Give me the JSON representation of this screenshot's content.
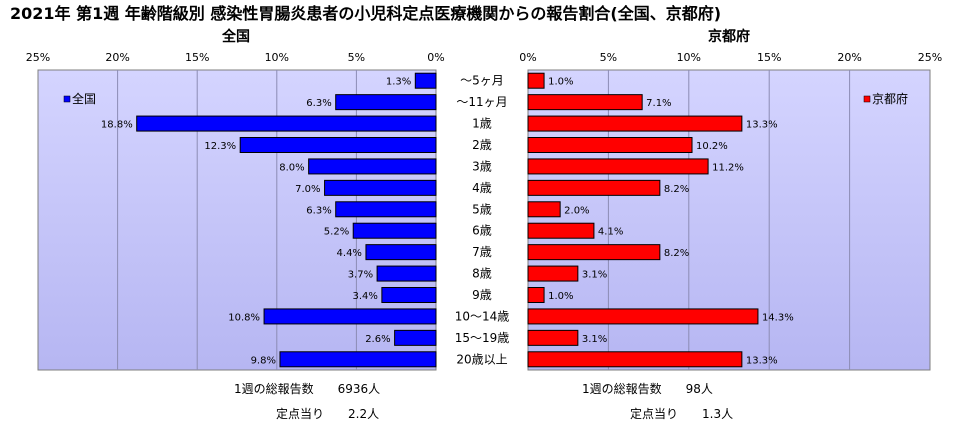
{
  "chart_data": {
    "type": "bar",
    "title": "2021年 第1週 年齢階級別 感染性胃腸炎患者の小児科定点医療機関からの報告割合(全国、京都府)",
    "categories": [
      "～5ヶ月",
      "～11ヶ月",
      "1歳",
      "2歳",
      "3歳",
      "4歳",
      "5歳",
      "6歳",
      "7歳",
      "8歳",
      "9歳",
      "10～14歳",
      "15～19歳",
      "20歳以上"
    ],
    "xlim": [
      0,
      25
    ],
    "x_ticks": [
      "0%",
      "5%",
      "10%",
      "15%",
      "20%",
      "25%"
    ],
    "grid": true,
    "series": [
      {
        "name": "全国",
        "panel_title": "全国",
        "color": "#0000ff",
        "legend_position": "top-left",
        "values": [
          1.3,
          6.3,
          18.8,
          12.3,
          8.0,
          7.0,
          6.3,
          5.2,
          4.4,
          3.7,
          3.4,
          10.8,
          2.6,
          9.8
        ],
        "value_labels": [
          "1.3%",
          "6.3%",
          "18.8%",
          "12.3%",
          "8.0%",
          "7.0%",
          "6.3%",
          "5.2%",
          "4.4%",
          "3.7%",
          "3.4%",
          "10.8%",
          "2.6%",
          "9.8%"
        ]
      },
      {
        "name": "京都府",
        "panel_title": "京都府",
        "color": "#ff0000",
        "legend_position": "top-right",
        "values": [
          1.0,
          7.1,
          13.3,
          10.2,
          11.2,
          8.2,
          2.0,
          4.1,
          8.2,
          3.1,
          1.0,
          14.3,
          3.1,
          13.3
        ],
        "value_labels": [
          "1.0%",
          "7.1%",
          "13.3%",
          "10.2%",
          "11.2%",
          "8.2%",
          "2.0%",
          "4.1%",
          "8.2%",
          "3.1%",
          "1.0%",
          "14.3%",
          "3.1%",
          "13.3%"
        ]
      }
    ]
  },
  "footer": {
    "national": {
      "report_line": "1週の総報告数　　6936人",
      "per_site_line": "定点当り　　2.2人"
    },
    "kyoto": {
      "report_line": "1週の総報告数　　98人",
      "per_site_line": "定点当り　　1.3人"
    }
  }
}
